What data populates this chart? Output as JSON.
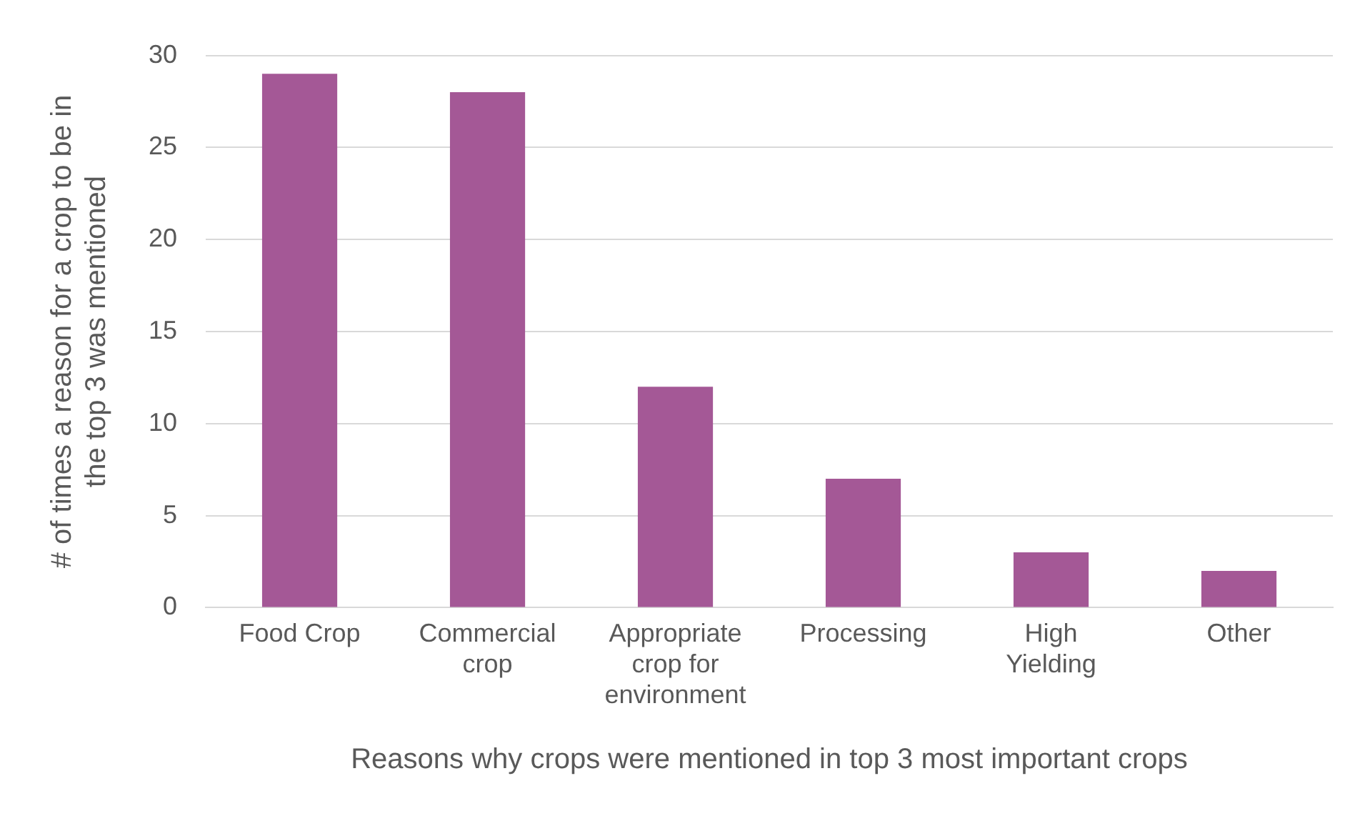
{
  "chart_data": {
    "type": "bar",
    "xlabel": "Reasons why crops were mentioned in top 3 most important crops",
    "ylabel": "# of times a reason for a crop to be in the top 3 was mentioned",
    "categories": [
      "Food Crop",
      "Commercial crop",
      "Appropriate crop for environment",
      "Processing",
      "High Yielding",
      "Other"
    ],
    "values": [
      29,
      28,
      12,
      7,
      3,
      2
    ],
    "color": "#a45896",
    "ylim": [
      0,
      30
    ],
    "yticks": [
      0,
      5,
      10,
      15,
      20,
      25,
      30
    ],
    "grid": "y",
    "legend": false
  }
}
